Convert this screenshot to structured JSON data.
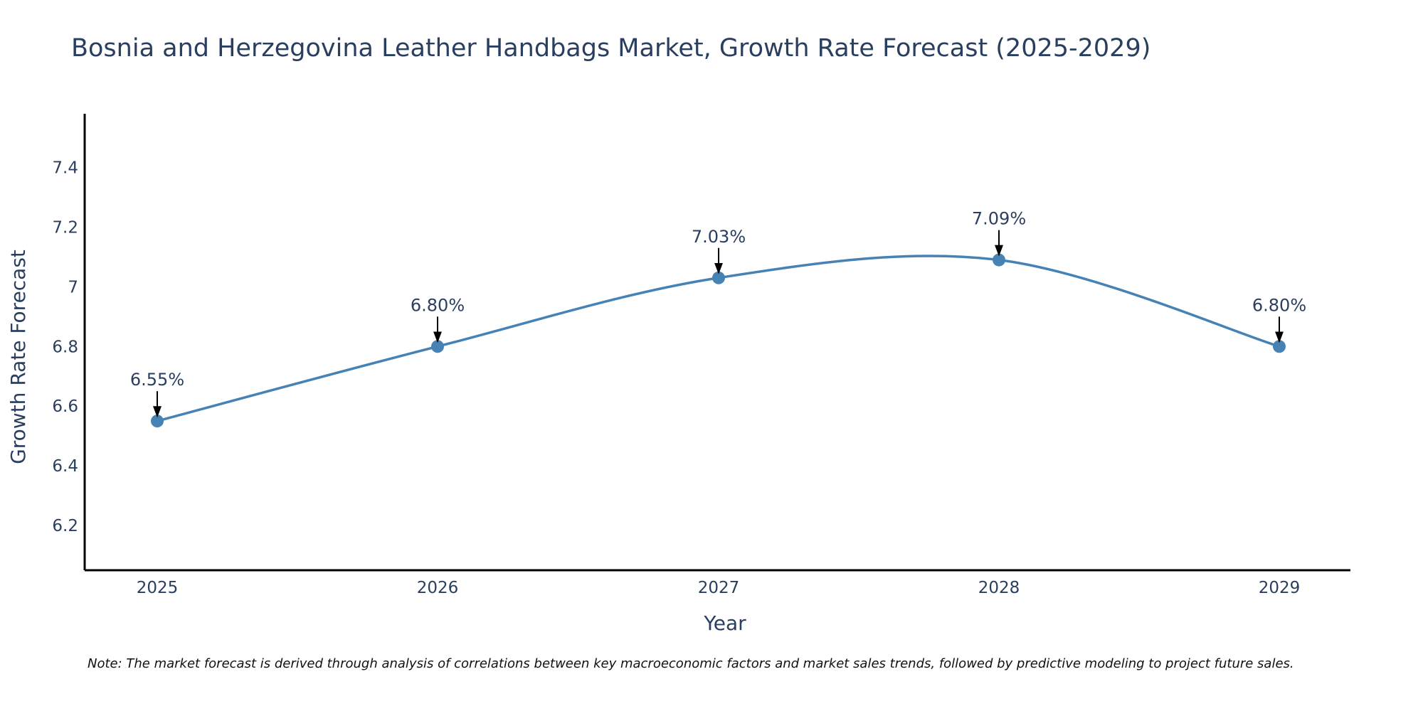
{
  "chart_data": {
    "type": "line",
    "title": "Bosnia and Herzegovina Leather Handbags Market, Growth Rate Forecast (2025-2029)",
    "xlabel": "Year",
    "ylabel": "Growth Rate Forecast",
    "categories": [
      "2025",
      "2026",
      "2027",
      "2028",
      "2029"
    ],
    "series": [
      {
        "name": "Growth Rate Forecast",
        "values": [
          6.55,
          6.8,
          7.03,
          7.09,
          6.8
        ],
        "labels": [
          "6.55%",
          "6.80%",
          "7.03%",
          "7.09%",
          "6.80%"
        ]
      }
    ],
    "ylim": [
      6.05,
      7.58
    ],
    "yticks": [
      6.2,
      6.4,
      6.6,
      6.8,
      7,
      7.2,
      7.4
    ],
    "ytick_labels": [
      "6.2",
      "6.4",
      "6.6",
      "6.8",
      "7",
      "7.2",
      "7.4"
    ],
    "grid": false,
    "line_shape": "spline",
    "line_color": "#4682b4",
    "marker_color": "#4682b4",
    "axis_color": "#000000",
    "text_color": "#2a3f5f",
    "note": "Note: The market forecast is derived through analysis of correlations between key macroeconomic factors and market sales trends, followed by predictive modeling to project future sales."
  }
}
